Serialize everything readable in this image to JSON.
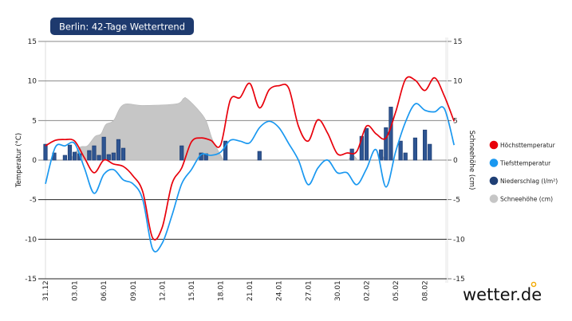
{
  "chart_data": {
    "type": "line",
    "title": "Berlin: 42-Tage Wettertrend",
    "ylabel": "Temperatur (°C)",
    "y2label": "Schneehöhe (cm)",
    "ylim": [
      -15,
      15
    ],
    "y2lim": [
      -15,
      15
    ],
    "yticks": [
      15,
      10,
      5,
      0,
      -5,
      -10,
      -15
    ],
    "grid": true,
    "legend_position": "right",
    "x_tick_labels": [
      "31.12",
      "03.01",
      "06.01",
      "09.01",
      "12.01",
      "15.01",
      "18.01",
      "21.01",
      "24.01",
      "27.01",
      "30.01",
      "02.02",
      "05.02",
      "08.02"
    ],
    "x_tick_step_days": 3,
    "days": 42,
    "colors": {
      "max": "#e8000b",
      "min": "#1a98f0",
      "precip": "#1f3f75",
      "snow": "#c6c6c6",
      "title_bg": "#1e3a6e",
      "logo_dot": "#f2a900"
    },
    "series": [
      {
        "name": "Höchsttemperatur",
        "kind": "line",
        "values": [
          1.8,
          2.5,
          2.6,
          2.4,
          0.3,
          -1.6,
          0,
          -0.5,
          -0.8,
          -2,
          -4,
          -9.8,
          -8.5,
          -3,
          -1,
          2.3,
          2.8,
          2.5,
          1.9,
          7.6,
          7.9,
          9.7,
          6.6,
          8.9,
          9.4,
          9.1,
          4.3,
          2.4,
          5.1,
          3.4,
          0.8,
          0.9,
          1.1,
          4.3,
          3.3,
          2.8,
          6.1,
          10.2,
          10.1,
          8.8,
          10.4,
          8.1,
          4.9
        ]
      },
      {
        "name": "Tiefsttemperatur",
        "kind": "line",
        "values": [
          -3,
          1.6,
          1.8,
          2.1,
          -1,
          -4.2,
          -1.8,
          -1.2,
          -2.5,
          -3,
          -5,
          -11.2,
          -10.5,
          -7,
          -3,
          -1.2,
          0.7,
          0.6,
          1,
          2.5,
          2.4,
          2.2,
          4.1,
          4.9,
          4.1,
          2.1,
          0,
          -3.1,
          -1,
          0,
          -1.6,
          -1.6,
          -3.1,
          -1.1,
          1.3,
          -3.4,
          1.1,
          4.8,
          7.1,
          6.3,
          6.1,
          6.5,
          1.9
        ]
      },
      {
        "name": "Niederschlag (l/m²)",
        "kind": "bar",
        "days": [
          0,
          0.9,
          2,
          2.5,
          3,
          3.5,
          4.5,
          5,
          5.5,
          6,
          6.5,
          7,
          7.5,
          8,
          14,
          16,
          16.5,
          18.5,
          22,
          31.5,
          32.5,
          33,
          34.5,
          35,
          35.5,
          36.5,
          37,
          38,
          39,
          39.5
        ],
        "values": [
          2,
          0.9,
          0.6,
          1.9,
          1,
          0.8,
          1.2,
          1.8,
          0.6,
          2.9,
          0.7,
          0.9,
          2.6,
          1.5,
          1.8,
          0.9,
          0.8,
          2.4,
          1.1,
          1.4,
          3,
          4,
          1.3,
          4.1,
          6.7,
          2.4,
          0.9,
          2.8,
          3.8,
          2
        ]
      },
      {
        "name": "Schneehöhe (cm)",
        "kind": "area",
        "days": [
          2.5,
          3.5,
          4.3,
          5.1,
          5.7,
          6.2,
          7,
          8,
          10,
          13.4,
          14.2,
          14.5,
          15.6,
          16.5,
          17.2,
          18.3,
          31.1,
          31.6,
          32.1,
          34.2,
          34.6,
          35
        ],
        "values": [
          0,
          1.6,
          1.8,
          3,
          3.3,
          4.5,
          5,
          7,
          6.9,
          7.1,
          7.8,
          7.8,
          6.5,
          5,
          2.5,
          0,
          0,
          0.6,
          0,
          0,
          0.5,
          0
        ]
      }
    ]
  },
  "brand": {
    "logo_text": "wetter.de"
  }
}
